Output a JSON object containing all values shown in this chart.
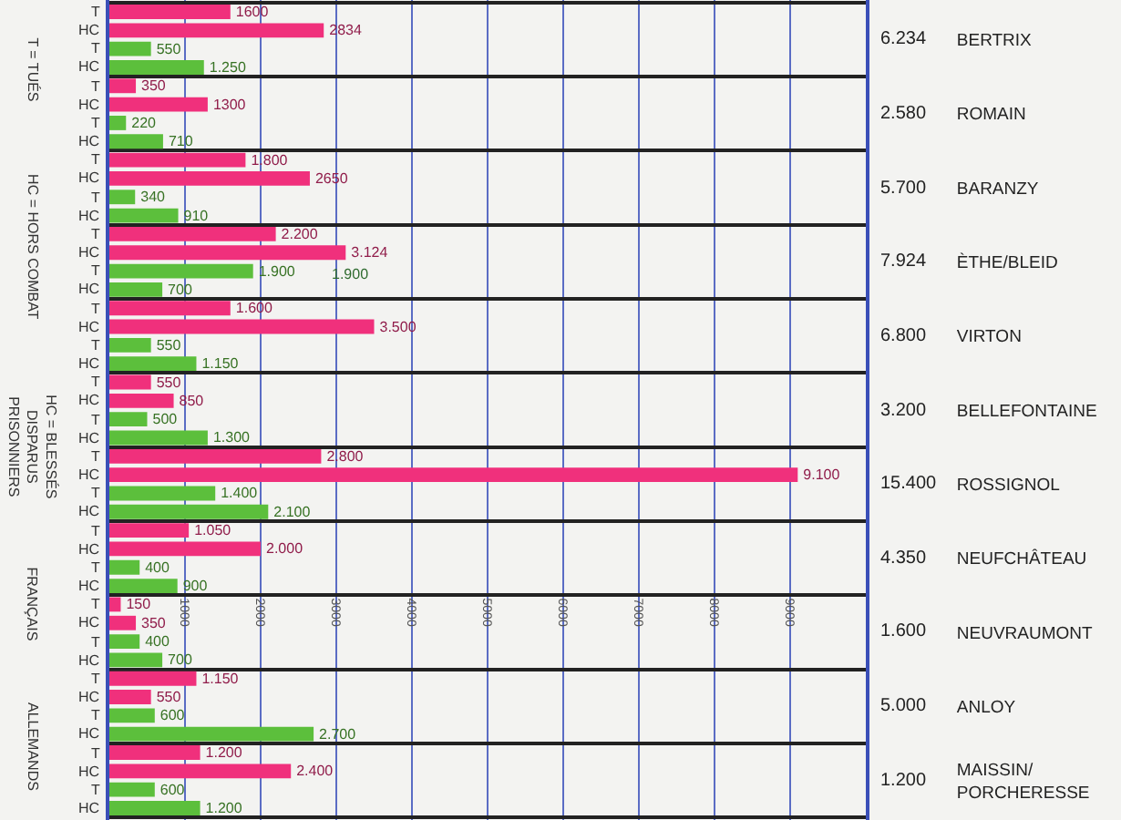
{
  "chart_data": {
    "type": "bar",
    "orientation": "horizontal",
    "categories": [
      "BERTRIX",
      "ROMAIN",
      "BARANZY",
      "ÈTHE/BLEID",
      "VIRTON",
      "BELLEFONTAINE",
      "ROSSIGNOL",
      "NEUFCHÂTEAU",
      "NEUVRAUMONT",
      "ANLOY",
      "MAISSIN/PORCHERESSE"
    ],
    "series": [
      {
        "name": "T",
        "color": "#f0307c",
        "values": [
          1600,
          350,
          1800,
          2200,
          1600,
          550,
          2800,
          1050,
          150,
          1150,
          1200
        ],
        "value_labels": [
          "1600",
          "350",
          "1.800",
          "2.200",
          "1.600",
          "550",
          "2.800",
          "1.050",
          "150",
          "1.150",
          "1.200"
        ]
      },
      {
        "name": "HC",
        "color": "#f0307c",
        "values": [
          2834,
          1300,
          2650,
          3124,
          3500,
          850,
          9100,
          2000,
          350,
          550,
          2400
        ],
        "value_labels": [
          "2834",
          "1300",
          "2650",
          "3.124",
          "3.500",
          "850",
          "9.100",
          "2.000",
          "350",
          "550",
          "2.400"
        ]
      },
      {
        "name": "T",
        "color": "#5cbf3c",
        "values": [
          550,
          220,
          340,
          1900,
          550,
          500,
          1400,
          400,
          400,
          600,
          600
        ],
        "value_labels": [
          "550",
          "220",
          "340",
          "1.900",
          "550",
          "500",
          "1.400",
          "400",
          "400",
          "600",
          "600"
        ]
      },
      {
        "name": "HC",
        "color": "#5cbf3c",
        "values": [
          1250,
          710,
          910,
          700,
          1150,
          1300,
          2100,
          900,
          700,
          2700,
          1200
        ],
        "value_labels": [
          "1.250",
          "710",
          "910",
          "700",
          "1.150",
          "1.300",
          "2.100",
          "900",
          "700",
          "2.700",
          "1.200"
        ]
      }
    ],
    "xlim": [
      0,
      10000
    ],
    "xticks": [
      1000,
      2000,
      3000,
      4000,
      5000,
      6000,
      7000,
      8000,
      9000
    ],
    "grid": true,
    "annotations": [
      "T = TUÉS",
      "HC = HORS COMBAT",
      "HC = BLESSÉS DISPARUS PRISONNIERS",
      "FRANÇAIS",
      "ALLEMANDS",
      {
        "text": "1.900",
        "x": 2900,
        "y": "ÈTHE/BLEID"
      },
      "6.234",
      "2.580",
      "5.700",
      "7.924",
      "6.800",
      "3.200",
      "15.400",
      "4.350",
      "1.600",
      "5.000",
      "1.200"
    ]
  }
}
